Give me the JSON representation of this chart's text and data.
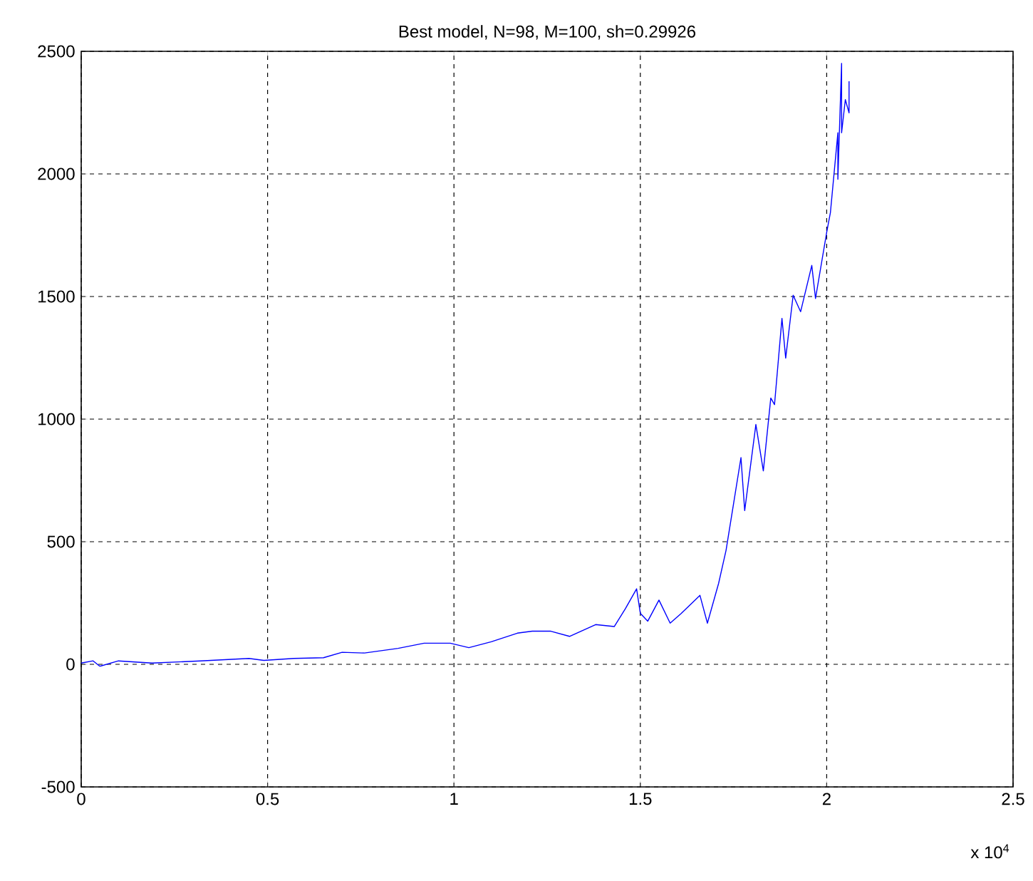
{
  "chart_data": {
    "type": "line",
    "title": "Best model, N=98, M=100, sh=0.29926",
    "annotations": [
      "x 10$^{4}$"
    ],
    "x": [
      0,
      0.032,
      0.05,
      0.1,
      0.19,
      0.32,
      0.45,
      0.49,
      0.57,
      0.65,
      0.7,
      0.76,
      0.85,
      0.92,
      0.99,
      1.04,
      1.1,
      1.17,
      1.21,
      1.26,
      1.31,
      1.38,
      1.43,
      1.46,
      1.49,
      1.5,
      1.52,
      1.55,
      1.58,
      1.61,
      1.66,
      1.68,
      1.71,
      1.73,
      1.75,
      1.77,
      1.78,
      1.81,
      1.83,
      1.85,
      1.86,
      1.88,
      1.89,
      1.91,
      1.93,
      1.96,
      1.97,
      2.0,
      2.01,
      2.03,
      2.03,
      2.04,
      2.04,
      2.05,
      2.06,
      2.06
    ],
    "values": [
      5,
      14,
      -8,
      14,
      5,
      14,
      24,
      16,
      24,
      27,
      49,
      46,
      65,
      86,
      86,
      68,
      92,
      127,
      135,
      135,
      114,
      162,
      154,
      227,
      308,
      208,
      176,
      262,
      168,
      208,
      281,
      168,
      330,
      465,
      654,
      843,
      627,
      978,
      789,
      1086,
      1059,
      1411,
      1249,
      1505,
      1438,
      1627,
      1492,
      1762,
      1843,
      2168,
      1978,
      2451,
      2168,
      2303,
      2249,
      2378
    ],
    "color": "#0000ff",
    "xlim": [
      0,
      2.5
    ],
    "xticks": [
      0,
      0.5,
      1,
      1.5,
      2,
      2.5
    ],
    "ylim": [
      -500,
      2500
    ],
    "yticks": [
      -500,
      0,
      500,
      1000,
      1500,
      2000,
      2500
    ],
    "grid": true,
    "line_style": "solid",
    "marker": "none"
  }
}
